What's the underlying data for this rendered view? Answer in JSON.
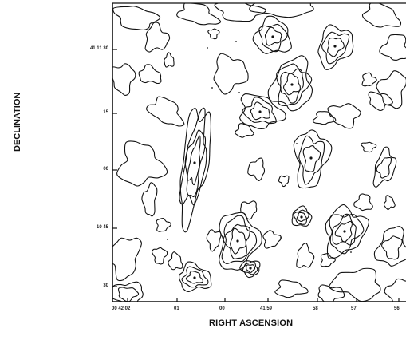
{
  "chart_data": {
    "type": "contour",
    "title": "",
    "xlabel": "RIGHT ASCENSION",
    "ylabel": "DECLINATION",
    "x_ticks": [
      "00 42 02",
      "01",
      "00",
      "41 59",
      "58",
      "57",
      "56"
    ],
    "y_ticks": [
      "41 11 30",
      "15",
      "00",
      "10 45",
      "30"
    ],
    "grid": false,
    "contour_levels": 4,
    "colors": {
      "contour": "#111111",
      "frame": "#111111",
      "background": "#ffffff"
    }
  }
}
